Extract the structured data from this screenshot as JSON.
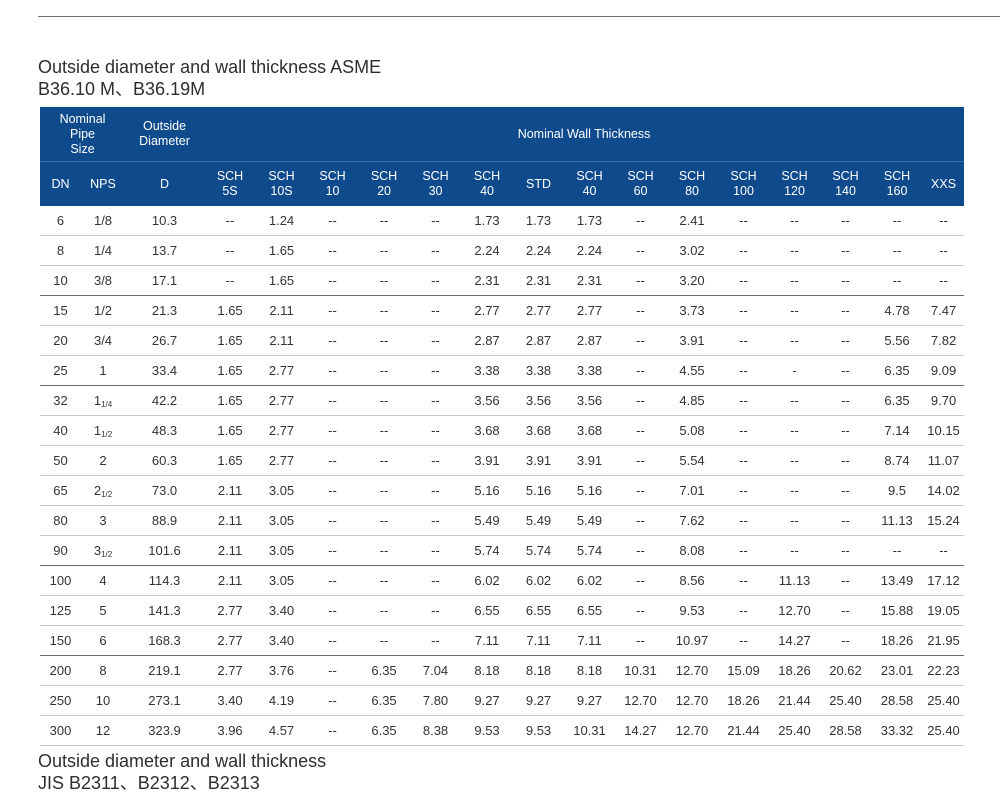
{
  "heading_top": {
    "line1": "Outside diameter and wall thickness ASME",
    "line2": "B36.10 M、B36.19M"
  },
  "table": {
    "header_group": {
      "nominal_pipe_size": [
        "Nominal",
        "Pipe",
        "Size"
      ],
      "outside_diameter": [
        "Outside",
        "Diameter"
      ],
      "nominal_wall_thickness": "Nominal Wall Thickness"
    },
    "columns": [
      [
        "DN"
      ],
      [
        "NPS"
      ],
      [
        "D"
      ],
      [
        "SCH",
        "5S"
      ],
      [
        "SCH",
        "10S"
      ],
      [
        "SCH",
        "10"
      ],
      [
        "SCH",
        "20"
      ],
      [
        "SCH",
        "30"
      ],
      [
        "SCH",
        "40"
      ],
      [
        "STD"
      ],
      [
        "SCH",
        "40"
      ],
      [
        "SCH",
        "60"
      ],
      [
        "SCH",
        "80"
      ],
      [
        "SCH",
        "100"
      ],
      [
        "SCH",
        "120"
      ],
      [
        "SCH",
        "140"
      ],
      [
        "SCH",
        "160"
      ],
      [
        "XXS"
      ]
    ],
    "rows": [
      [
        "6",
        "1/8",
        "10.3",
        "--",
        "1.24",
        "--",
        "--",
        "--",
        "1.73",
        "1.73",
        "1.73",
        "--",
        "2.41",
        "--",
        "--",
        "--",
        "--",
        "--"
      ],
      [
        "8",
        "1/4",
        "13.7",
        "--",
        "1.65",
        "--",
        "--",
        "--",
        "2.24",
        "2.24",
        "2.24",
        "--",
        "3.02",
        "--",
        "--",
        "--",
        "--",
        "--"
      ],
      [
        "10",
        "3/8",
        "17.1",
        "--",
        "1.65",
        "--",
        "--",
        "--",
        "2.31",
        "2.31",
        "2.31",
        "--",
        "3.20",
        "--",
        "--",
        "--",
        "--",
        "--"
      ],
      [
        "15",
        "1/2",
        "21.3",
        "1.65",
        "2.11",
        "--",
        "--",
        "--",
        "2.77",
        "2.77",
        "2.77",
        "--",
        "3.73",
        "--",
        "--",
        "--",
        "4.78",
        "7.47"
      ],
      [
        "20",
        "3/4",
        "26.7",
        "1.65",
        "2.11",
        "--",
        "--",
        "--",
        "2.87",
        "2.87",
        "2.87",
        "--",
        "3.91",
        "--",
        "--",
        "--",
        "5.56",
        "7.82"
      ],
      [
        "25",
        "1",
        "33.4",
        "1.65",
        "2.77",
        "--",
        "--",
        "--",
        "3.38",
        "3.38",
        "3.38",
        "--",
        "4.55",
        "--",
        "-",
        "--",
        "6.35",
        "9.09"
      ],
      [
        "32",
        {
          "whole": "1",
          "frac": "1/4"
        },
        "42.2",
        "1.65",
        "2.77",
        "--",
        "--",
        "--",
        "3.56",
        "3.56",
        "3.56",
        "--",
        "4.85",
        "--",
        "--",
        "--",
        "6.35",
        "9.70"
      ],
      [
        "40",
        {
          "whole": "1",
          "frac": "1/2"
        },
        "48.3",
        "1.65",
        "2.77",
        "--",
        "--",
        "--",
        "3.68",
        "3.68",
        "3.68",
        "--",
        "5.08",
        "--",
        "--",
        "--",
        "7.14",
        "10.15"
      ],
      [
        "50",
        "2",
        "60.3",
        "1.65",
        "2.77",
        "--",
        "--",
        "--",
        "3.91",
        "3.91",
        "3.91",
        "--",
        "5.54",
        "--",
        "--",
        "--",
        "8.74",
        "11.07"
      ],
      [
        "65",
        {
          "whole": "2",
          "frac": "1/2"
        },
        "73.0",
        "2.11",
        "3.05",
        "--",
        "--",
        "--",
        "5.16",
        "5.16",
        "5.16",
        "--",
        "7.01",
        "--",
        "--",
        "--",
        "9.5",
        "14.02"
      ],
      [
        "80",
        "3",
        "88.9",
        "2.11",
        "3.05",
        "--",
        "--",
        "--",
        "5.49",
        "5.49",
        "5.49",
        "--",
        "7.62",
        "--",
        "--",
        "--",
        "11.13",
        "15.24"
      ],
      [
        "90",
        {
          "whole": "3",
          "frac": "1/2"
        },
        "101.6",
        "2.11",
        "3.05",
        "--",
        "--",
        "--",
        "5.74",
        "5.74",
        "5.74",
        "--",
        "8.08",
        "--",
        "--",
        "--",
        "--",
        "--"
      ],
      [
        "100",
        "4",
        "114.3",
        "2.11",
        "3.05",
        "--",
        "--",
        "--",
        "6.02",
        "6.02",
        "6.02",
        "--",
        "8.56",
        "--",
        "11.13",
        "--",
        "13.49",
        "17.12"
      ],
      [
        "125",
        "5",
        "141.3",
        "2.77",
        "3.40",
        "--",
        "--",
        "--",
        "6.55",
        "6.55",
        "6.55",
        "--",
        "9.53",
        "--",
        "12.70",
        "--",
        "15.88",
        "19.05"
      ],
      [
        "150",
        "6",
        "168.3",
        "2.77",
        "3.40",
        "--",
        "--",
        "--",
        "7.11",
        "7.11",
        "7.11",
        "--",
        "10.97",
        "--",
        "14.27",
        "--",
        "18.26",
        "21.95"
      ],
      [
        "200",
        "8",
        "219.1",
        "2.77",
        "3.76",
        "--",
        "6.35",
        "7.04",
        "8.18",
        "8.18",
        "8.18",
        "10.31",
        "12.70",
        "15.09",
        "18.26",
        "20.62",
        "23.01",
        "22.23"
      ],
      [
        "250",
        "10",
        "273.1",
        "3.40",
        "4.19",
        "--",
        "6.35",
        "7.80",
        "9.27",
        "9.27",
        "9.27",
        "12.70",
        "12.70",
        "18.26",
        "21.44",
        "25.40",
        "28.58",
        "25.40"
      ],
      [
        "300",
        "12",
        "323.9",
        "3.96",
        "4.57",
        "--",
        "6.35",
        "8.38",
        "9.53",
        "9.53",
        "10.31",
        "14.27",
        "12.70",
        "21.44",
        "25.40",
        "28.58",
        "33.32",
        "25.40"
      ]
    ],
    "group_end_rows": [
      2,
      5,
      11,
      14
    ]
  },
  "heading_bottom": {
    "line1": "Outside diameter and wall thickness",
    "line2": "JIS B2311、B2312、B2313"
  },
  "colors": {
    "header_bg": "#0e4a8c",
    "header_text": "#ffffff",
    "body_text": "#333333"
  }
}
